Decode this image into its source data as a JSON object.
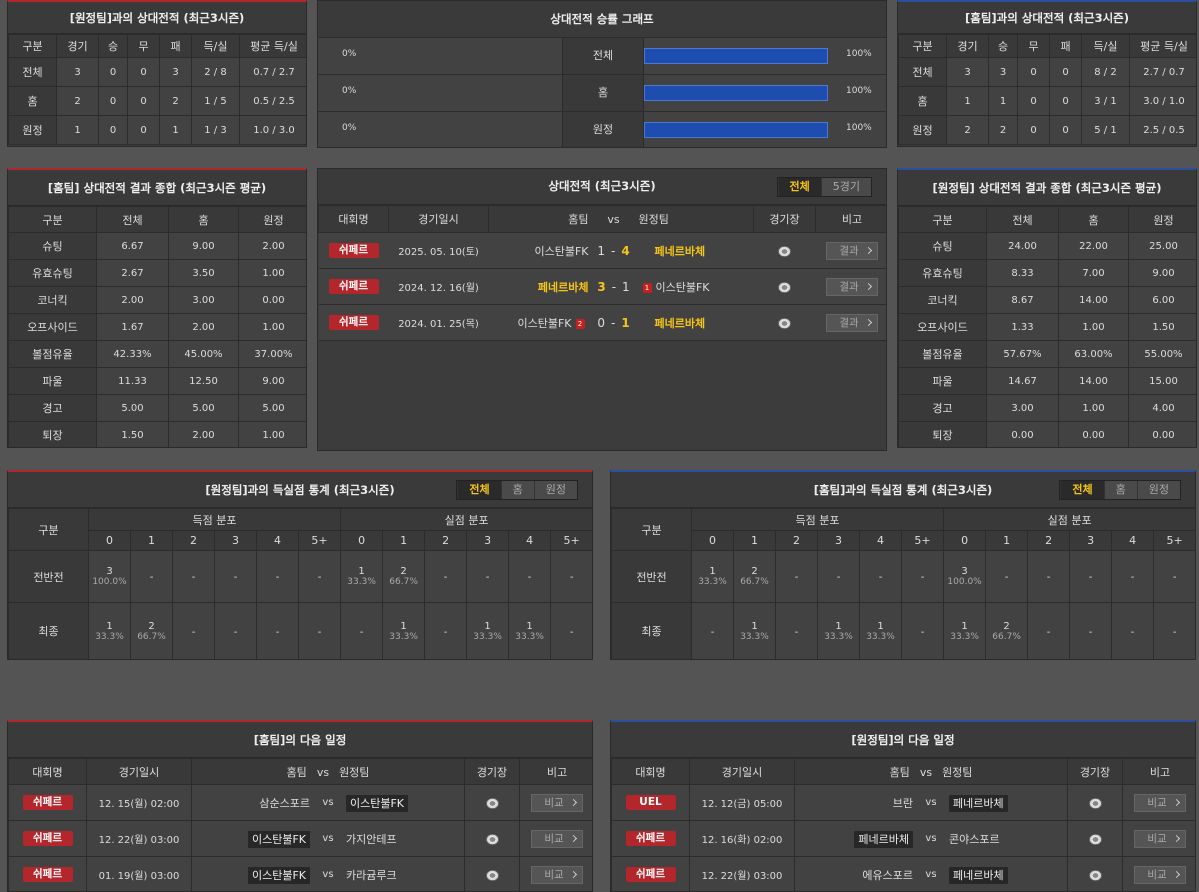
{
  "h2h_tables": [
    {
      "title": "[원정팀]과의 상대전적 (최근3시즌)",
      "accent": "#b3262b",
      "columns": [
        "구분",
        "경기",
        "승",
        "무",
        "패",
        "득/실",
        "평균 득/실"
      ],
      "rows": [
        [
          "전체",
          "3",
          "0",
          "0",
          "3",
          "2 / 8",
          "0.7 / 2.7"
        ],
        [
          "홈",
          "2",
          "0",
          "0",
          "2",
          "1 / 5",
          "0.5 / 2.5"
        ],
        [
          "원정",
          "1",
          "0",
          "0",
          "1",
          "1 / 3",
          "1.0 / 3.0"
        ]
      ]
    },
    {
      "title": "[홈팀]과의 상대전적 (최근3시즌)",
      "accent": "#2b4f9e",
      "columns": [
        "구분",
        "경기",
        "승",
        "무",
        "패",
        "득/실",
        "평균 득/실"
      ],
      "rows": [
        [
          "전체",
          "3",
          "3",
          "0",
          "0",
          "8 / 2",
          "2.7 / 0.7"
        ],
        [
          "홈",
          "1",
          "1",
          "0",
          "0",
          "3 / 1",
          "3.0 / 1.0"
        ],
        [
          "원정",
          "2",
          "2",
          "0",
          "0",
          "5 / 1",
          "2.5 / 0.5"
        ]
      ]
    }
  ],
  "win_graph": {
    "title": "상대전적 승률 그래프",
    "rows": [
      {
        "left": "0%",
        "label": "전체",
        "right": "100%"
      },
      {
        "left": "0%",
        "label": "홈",
        "right": "100%"
      },
      {
        "left": "0%",
        "label": "원정",
        "right": "100%"
      }
    ]
  },
  "summaries": [
    {
      "title": "[홈팀] 상대전적 결과 종합 (최근3시즌 평균)",
      "accent": "#b3262b",
      "columns": [
        "구분",
        "전체",
        "홈",
        "원정"
      ],
      "rows": [
        [
          "슈팅",
          "6.67",
          "9.00",
          "2.00"
        ],
        [
          "유효슈팅",
          "2.67",
          "3.50",
          "1.00"
        ],
        [
          "코너킥",
          "2.00",
          "3.00",
          "0.00"
        ],
        [
          "오프사이드",
          "1.67",
          "2.00",
          "1.00"
        ],
        [
          "볼점유율",
          "42.33%",
          "45.00%",
          "37.00%"
        ],
        [
          "파울",
          "11.33",
          "12.50",
          "9.00"
        ],
        [
          "경고",
          "5.00",
          "5.00",
          "5.00"
        ],
        [
          "퇴장",
          "1.50",
          "2.00",
          "1.00"
        ]
      ]
    },
    {
      "title": "[원정팀] 상대전적 결과 종합 (최근3시즌 평균)",
      "accent": "#2b4f9e",
      "columns": [
        "구분",
        "전체",
        "홈",
        "원정"
      ],
      "rows": [
        [
          "슈팅",
          "24.00",
          "22.00",
          "25.00"
        ],
        [
          "유효슈팅",
          "8.33",
          "7.00",
          "9.00"
        ],
        [
          "코너킥",
          "8.67",
          "14.00",
          "6.00"
        ],
        [
          "오프사이드",
          "1.33",
          "1.00",
          "1.50"
        ],
        [
          "볼점유율",
          "57.67%",
          "63.00%",
          "55.00%"
        ],
        [
          "파울",
          "14.67",
          "14.00",
          "15.00"
        ],
        [
          "경고",
          "3.00",
          "1.00",
          "4.00"
        ],
        [
          "퇴장",
          "0.00",
          "0.00",
          "0.00"
        ]
      ]
    }
  ],
  "recent": {
    "title": "상대전적 (최근3시즌)",
    "tabs": [
      "전체",
      "5경기"
    ],
    "score_sep": "-",
    "columns": [
      "대회명",
      "경기일시",
      "홈팀",
      "vs",
      "원정팀",
      "경기장",
      "비고"
    ],
    "matches": [
      {
        "league": "쉬페르",
        "date": "2025. 05. 10(토)",
        "home": "이스탄불FK",
        "home_score": "1",
        "away_score": "4",
        "away": "페네르바체",
        "winner": "away",
        "button": "결과"
      },
      {
        "league": "쉬페르",
        "date": "2024. 12. 16(월)",
        "home": "페네르바체",
        "home_score": "3",
        "away_score": "1",
        "away": "이스탄불FK",
        "away_red": "1",
        "winner": "home",
        "button": "결과"
      },
      {
        "league": "쉬페르",
        "date": "2024. 01. 25(목)",
        "home": "이스탄불FK",
        "home_red": "2",
        "home_score": "0",
        "away_score": "1",
        "away": "페네르바체",
        "winner": "away",
        "button": "결과"
      }
    ]
  },
  "goal_stats": [
    {
      "title": "[원정팀]과의 득실점 통계 (최근3시즌)",
      "accent": "#b3262b",
      "tabs": [
        "전체",
        "홈",
        "원정"
      ],
      "head": "구분",
      "groups": [
        "득점 분포",
        "실점 분포"
      ],
      "columns": [
        "0",
        "1",
        "2",
        "3",
        "4",
        "5+"
      ],
      "rows": [
        {
          "label": "전반전",
          "scored": [
            [
              "3",
              "100.0%"
            ],
            "-",
            "-",
            "-",
            "-",
            "-"
          ],
          "conceded": [
            [
              "1",
              "33.3%"
            ],
            [
              "2",
              "66.7%"
            ],
            "-",
            "-",
            "-",
            "-"
          ]
        },
        {
          "label": "최종",
          "scored": [
            [
              "1",
              "33.3%"
            ],
            [
              "2",
              "66.7%"
            ],
            "-",
            "-",
            "-",
            "-"
          ],
          "conceded": [
            "-",
            [
              "1",
              "33.3%"
            ],
            "-",
            [
              "1",
              "33.3%"
            ],
            [
              "1",
              "33.3%"
            ],
            "-"
          ]
        }
      ]
    },
    {
      "title": "[홈팀]과의 득실점 통계 (최근3시즌)",
      "accent": "#2b4f9e",
      "tabs": [
        "전체",
        "홈",
        "원정"
      ],
      "head": "구분",
      "groups": [
        "득점 분포",
        "실점 분포"
      ],
      "columns": [
        "0",
        "1",
        "2",
        "3",
        "4",
        "5+"
      ],
      "rows": [
        {
          "label": "전반전",
          "scored": [
            [
              "1",
              "33.3%"
            ],
            [
              "2",
              "66.7%"
            ],
            "-",
            "-",
            "-",
            "-"
          ],
          "conceded": [
            [
              "3",
              "100.0%"
            ],
            "-",
            "-",
            "-",
            "-",
            "-"
          ]
        },
        {
          "label": "최종",
          "scored": [
            "-",
            [
              "1",
              "33.3%"
            ],
            "-",
            [
              "1",
              "33.3%"
            ],
            [
              "1",
              "33.3%"
            ],
            "-"
          ],
          "conceded": [
            [
              "1",
              "33.3%"
            ],
            [
              "2",
              "66.7%"
            ],
            "-",
            "-",
            "-",
            "-"
          ]
        }
      ]
    }
  ],
  "schedules": [
    {
      "title": "[홈팀]의 다음 일정",
      "accent": "#b3262b",
      "columns": [
        "대회명",
        "경기일시",
        "홈팀",
        "vs",
        "원정팀",
        "경기장",
        "비고"
      ],
      "vs": "vs",
      "rows": [
        {
          "league": "쉬페르",
          "date": "12. 15(월) 02:00",
          "home": "삼순스포르",
          "away": "이스탄불FK",
          "boxed": "away",
          "button": "비교"
        },
        {
          "league": "쉬페르",
          "date": "12. 22(월) 03:00",
          "home": "이스탄불FK",
          "away": "가지안테프",
          "boxed": "home",
          "button": "비교"
        },
        {
          "league": "쉬페르",
          "date": "01. 19(월) 03:00",
          "home": "이스탄불FK",
          "away": "카라귬루크",
          "boxed": "home",
          "button": "비교"
        }
      ]
    },
    {
      "title": "[원정팀]의 다음 일정",
      "accent": "#2b4f9e",
      "columns": [
        "대회명",
        "경기일시",
        "홈팀",
        "vs",
        "원정팀",
        "경기장",
        "비고"
      ],
      "vs": "vs",
      "rows": [
        {
          "league": "UEL",
          "date": "12. 12(금) 05:00",
          "home": "브란",
          "away": "페네르바체",
          "boxed": "away",
          "button": "비교"
        },
        {
          "league": "쉬페르",
          "date": "12. 16(화) 02:00",
          "home": "페네르바체",
          "away": "콘야스포르",
          "boxed": "home",
          "button": "비교"
        },
        {
          "league": "쉬페르",
          "date": "12. 22(월) 03:00",
          "home": "에유스포르",
          "away": "페네르바체",
          "boxed": "away",
          "button": "비교"
        }
      ]
    }
  ]
}
